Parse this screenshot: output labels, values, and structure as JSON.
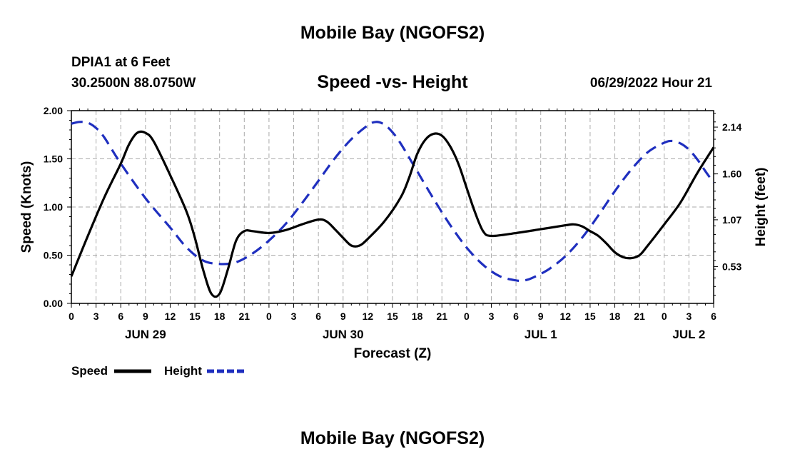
{
  "header": {
    "title": "Mobile Bay (NGOFS2)",
    "station": "DPIA1 at 6 Feet",
    "coords": "30.2500N  88.0750W",
    "subtitle": "Speed -vs- Height",
    "timestamp": "06/29/2022 Hour 21"
  },
  "footer": {
    "title": "Mobile Bay (NGOFS2)"
  },
  "chart_data": {
    "type": "line",
    "title": "Speed -vs- Height",
    "xlabel": "Forecast (Z)",
    "ylabel": "Speed (Knots)",
    "y2label": "Height (feet)",
    "x_tick_labels": [
      "0",
      "3",
      "6",
      "9",
      "12",
      "15",
      "18",
      "21",
      "0",
      "3",
      "6",
      "9",
      "12",
      "15",
      "18",
      "21",
      "0",
      "3",
      "6",
      "9",
      "12",
      "15",
      "18",
      "21",
      "0",
      "3",
      "6"
    ],
    "date_labels": [
      {
        "label": "JUN 29",
        "at_hour": 9
      },
      {
        "label": "JUN 30",
        "at_hour": 33
      },
      {
        "label": "JUL 1",
        "at_hour": 57
      },
      {
        "label": "JUL 2",
        "at_hour": 75
      }
    ],
    "xlim": [
      0,
      78
    ],
    "ylim": [
      0,
      2.0
    ],
    "y_ticks": [
      "0.00",
      "0.50",
      "1.00",
      "1.50",
      "2.00"
    ],
    "y2lim": [
      0.105,
      2.33
    ],
    "y2_ticks": [
      "0.53",
      "1.07",
      "1.60",
      "2.14"
    ],
    "grid": true,
    "legend": {
      "placement": "bottom-left",
      "entries": [
        "Speed",
        "Height"
      ]
    },
    "series": [
      {
        "name": "Speed",
        "axis": "left",
        "color": "#000000",
        "style": "solid",
        "points": [
          [
            0,
            0.28
          ],
          [
            2,
            0.7
          ],
          [
            4,
            1.1
          ],
          [
            6,
            1.45
          ],
          [
            7,
            1.65
          ],
          [
            8,
            1.77
          ],
          [
            9,
            1.77
          ],
          [
            10,
            1.68
          ],
          [
            12,
            1.33
          ],
          [
            14,
            0.95
          ],
          [
            15,
            0.68
          ],
          [
            16,
            0.35
          ],
          [
            17,
            0.1
          ],
          [
            18,
            0.1
          ],
          [
            19,
            0.35
          ],
          [
            20,
            0.65
          ],
          [
            21,
            0.75
          ],
          [
            22,
            0.75
          ],
          [
            24,
            0.73
          ],
          [
            26,
            0.76
          ],
          [
            28,
            0.82
          ],
          [
            30,
            0.87
          ],
          [
            31,
            0.85
          ],
          [
            32,
            0.77
          ],
          [
            33,
            0.68
          ],
          [
            34,
            0.6
          ],
          [
            35,
            0.6
          ],
          [
            36,
            0.67
          ],
          [
            38,
            0.85
          ],
          [
            40,
            1.1
          ],
          [
            41,
            1.3
          ],
          [
            42,
            1.55
          ],
          [
            43,
            1.7
          ],
          [
            44,
            1.76
          ],
          [
            45,
            1.74
          ],
          [
            46,
            1.63
          ],
          [
            47,
            1.45
          ],
          [
            48,
            1.2
          ],
          [
            49,
            0.95
          ],
          [
            50,
            0.75
          ],
          [
            51,
            0.7
          ],
          [
            54,
            0.73
          ],
          [
            57,
            0.77
          ],
          [
            60,
            0.81
          ],
          [
            61,
            0.82
          ],
          [
            62,
            0.8
          ],
          [
            63,
            0.75
          ],
          [
            64,
            0.7
          ],
          [
            65,
            0.62
          ],
          [
            66,
            0.53
          ],
          [
            67,
            0.48
          ],
          [
            68,
            0.47
          ],
          [
            69,
            0.5
          ],
          [
            70,
            0.6
          ],
          [
            72,
            0.82
          ],
          [
            74,
            1.05
          ],
          [
            76,
            1.35
          ],
          [
            78,
            1.62
          ]
        ]
      },
      {
        "name": "Height",
        "axis": "right",
        "color": "#1f2fbf",
        "style": "dashed",
        "points": [
          [
            0,
            2.18
          ],
          [
            1,
            2.2
          ],
          [
            2,
            2.19
          ],
          [
            3,
            2.13
          ],
          [
            4,
            2.02
          ],
          [
            6,
            1.72
          ],
          [
            9,
            1.32
          ],
          [
            12,
            0.98
          ],
          [
            14,
            0.75
          ],
          [
            16,
            0.6
          ],
          [
            18,
            0.56
          ],
          [
            20,
            0.58
          ],
          [
            22,
            0.68
          ],
          [
            24,
            0.83
          ],
          [
            26,
            1.02
          ],
          [
            28,
            1.26
          ],
          [
            30,
            1.52
          ],
          [
            32,
            1.78
          ],
          [
            34,
            2.0
          ],
          [
            36,
            2.16
          ],
          [
            37,
            2.2
          ],
          [
            38,
            2.17
          ],
          [
            39,
            2.08
          ],
          [
            40,
            1.95
          ],
          [
            42,
            1.63
          ],
          [
            44,
            1.31
          ],
          [
            46,
            1.01
          ],
          [
            48,
            0.75
          ],
          [
            50,
            0.55
          ],
          [
            52,
            0.42
          ],
          [
            54,
            0.37
          ],
          [
            55,
            0.37
          ],
          [
            56,
            0.4
          ],
          [
            58,
            0.5
          ],
          [
            60,
            0.65
          ],
          [
            62,
            0.86
          ],
          [
            64,
            1.12
          ],
          [
            66,
            1.4
          ],
          [
            68,
            1.65
          ],
          [
            70,
            1.85
          ],
          [
            72,
            1.96
          ],
          [
            73,
            1.98
          ],
          [
            74,
            1.95
          ],
          [
            75,
            1.88
          ],
          [
            76,
            1.77
          ],
          [
            77,
            1.63
          ],
          [
            78,
            1.5
          ]
        ]
      }
    ]
  }
}
